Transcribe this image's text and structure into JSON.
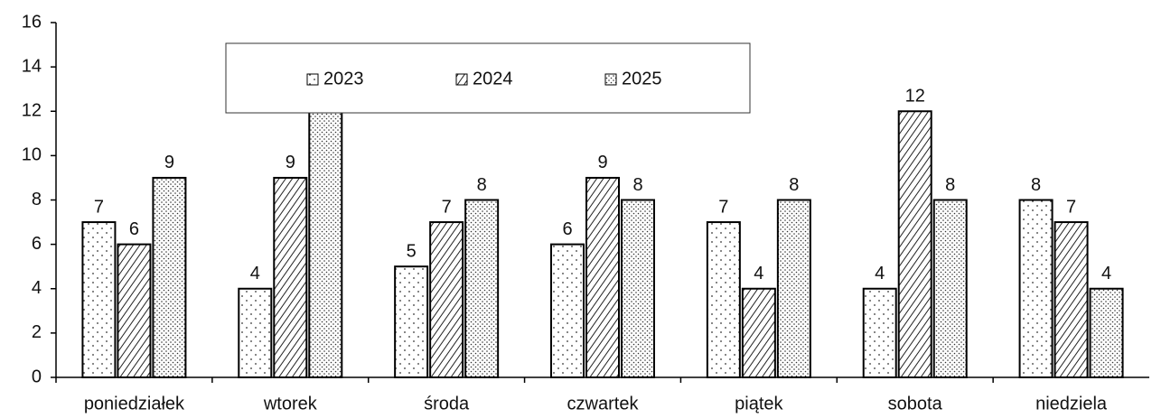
{
  "chart_data": {
    "type": "bar",
    "categories": [
      "poniedziałek",
      "wtorek",
      "środa",
      "czwartek",
      "piątek",
      "sobota",
      "niedziela"
    ],
    "series": [
      {
        "name": "2023",
        "color": "#ffffff",
        "pattern": "dots",
        "values": [
          7,
          4,
          5,
          6,
          7,
          4,
          8
        ]
      },
      {
        "name": "2024",
        "color": "#ffffff",
        "pattern": "hatch",
        "values": [
          6,
          9,
          7,
          9,
          4,
          12,
          7
        ]
      },
      {
        "name": "2025",
        "color": "#ffffff",
        "pattern": "dense-dots",
        "values": [
          9,
          14,
          8,
          8,
          8,
          8,
          4
        ]
      }
    ],
    "ylim": [
      0,
      16
    ],
    "yticks": [
      0,
      2,
      4,
      6,
      8,
      10,
      12,
      14,
      16
    ],
    "legend": "top"
  }
}
